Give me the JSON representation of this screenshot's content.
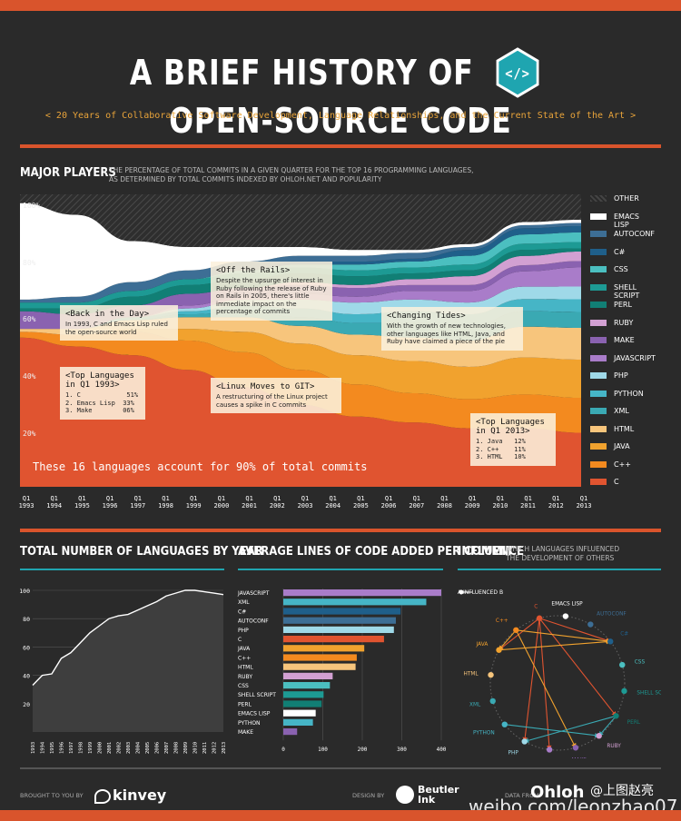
{
  "header": {
    "title_left": "A BRIEF HISTORY OF",
    "title_icon": "</>",
    "title_right": "OPEN-SOURCE CODE",
    "subtitle": "< 20 Years of Collaborative Software Development, Language Relationships, and the Current State of the Art >"
  },
  "major": {
    "title": "MAJOR PLAYERS",
    "desc_line1": "THE PERCENTAGE OF TOTAL COMMITS IN A GIVEN QUARTER FOR THE TOP 16 PROGRAMMING LANGUAGES,",
    "desc_line2": "AS DETERMINED BY TOTAL COMMITS INDEXED BY OHLOH.NET AND POPULARITY",
    "ylabels": [
      "100%",
      "80%",
      "60%",
      "40%",
      "20%"
    ],
    "xlabels": [
      "Q1 1993",
      "Q1 1994",
      "Q1 1995",
      "Q1 1996",
      "Q1 1997",
      "Q1 1998",
      "Q1 1999",
      "Q1 2000",
      "Q1 2001",
      "Q1 2002",
      "Q1 2003",
      "Q1 2004",
      "Q1 2005",
      "Q1 2006",
      "Q1 2007",
      "Q1 2008",
      "Q1 2009",
      "Q1 2010",
      "Q1 2011",
      "Q1 2012",
      "Q1 2013"
    ],
    "note": "These 16 languages account for 90% of total commits",
    "ann_day_head": "<Back in the Day>",
    "ann_day_body": "In 1993, C and Emacs Lisp ruled the open-source world",
    "ann_top93_head": "<Top Languages in Q1 1993>",
    "ann_top93_rows": [
      "1. C            51%",
      "2. Emacs Lisp  33%",
      "3. Make        06%"
    ],
    "ann_rails_head": "<Off the Rails>",
    "ann_rails_body": "Despite the upsurge of interest in Ruby following the release of Ruby on Rails in 2005, there's little immediate impact on the percentage of commits",
    "ann_linux_head": "<Linux Moves to GIT>",
    "ann_linux_body": "A restructuring of the Linux project causes a spike in C commits",
    "ann_tides_head": "<Changing Tides>",
    "ann_tides_body": "With the growth of new technologies, other languages like HTML, Java, and Ruby have claimed a piece of the pie",
    "ann_top13_head": "<Top Languages in Q1 2013>",
    "ann_top13_rows": [
      "1. Java   12%",
      "2. C++    11%",
      "3. HTML   10%"
    ],
    "legend": [
      {
        "name": "OTHER",
        "color": "#3a3a3a"
      },
      {
        "name": "EMACS LISP",
        "color": "#ffffff"
      },
      {
        "name": "AUTOCONF",
        "color": "#3d6e95"
      },
      {
        "name": "C#",
        "color": "#1f5f8a"
      },
      {
        "name": "CSS",
        "color": "#4bbfc0"
      },
      {
        "name": "SHELL SCRIPT",
        "color": "#1d9a94"
      },
      {
        "name": "PERL",
        "color": "#117f75"
      },
      {
        "name": "RUBY",
        "color": "#d2a0d2"
      },
      {
        "name": "MAKE",
        "color": "#8a62b0"
      },
      {
        "name": "JAVASCRIPT",
        "color": "#a97cc9"
      },
      {
        "name": "PHP",
        "color": "#9fd9e8"
      },
      {
        "name": "PYTHON",
        "color": "#46b5c6"
      },
      {
        "name": "XML",
        "color": "#3aa9b3"
      },
      {
        "name": "HTML",
        "color": "#f7c57c"
      },
      {
        "name": "JAVA",
        "color": "#f1a22e"
      },
      {
        "name": "C++",
        "color": "#f38a1f"
      },
      {
        "name": "C",
        "color": "#e05430"
      }
    ]
  },
  "total": {
    "title": "TOTAL NUMBER OF LANGUAGES BY YEAR",
    "ylabels": [
      "100",
      "80",
      "60",
      "40",
      "20"
    ],
    "years": [
      "1993",
      "1994",
      "1995",
      "1996",
      "1997",
      "1998",
      "1999",
      "2000",
      "2001",
      "2002",
      "2003",
      "2004",
      "2005",
      "2006",
      "2007",
      "2008",
      "2009",
      "2010",
      "2011",
      "2012",
      "2013"
    ]
  },
  "avg": {
    "title": "AVERAGE LINES OF CODE ADDED PER COMMIT",
    "xticks": [
      "0",
      "100",
      "200",
      "300",
      "400"
    ]
  },
  "influence": {
    "title": "INFLUENCE",
    "desc": "WHICH LANGUAGES INFLUENCED THE DEVELOPMENT OF OTHERS",
    "key": "A INFLUENCED B",
    "nodes": [
      "EMACS LISP",
      "AUTOCONF",
      "C#",
      "CSS",
      "SHELL SCRIPT",
      "PERL",
      "RUBY",
      "MAKE",
      "JAVASCRIPT",
      "PHP",
      "PYTHON",
      "XML",
      "HTML",
      "JAVA",
      "C++",
      "C"
    ]
  },
  "footer": {
    "brought": "BROUGHT TO YOU BY",
    "kinvey": "kinvey",
    "design": "DESIGN BY",
    "beutler": "Beutler Ink",
    "datafrom": "DATA FROM",
    "ohloh": "Ohloh",
    "wm_user": "@上图赵亮",
    "wm_url": "weibo.com/leonzhao07"
  },
  "chart_data": [
    {
      "type": "area",
      "title": "MAJOR PLAYERS",
      "xlabel": "",
      "ylabel": "",
      "ylim": [
        0,
        100
      ],
      "x": [
        "1993",
        "1995",
        "1997",
        "1999",
        "2001",
        "2003",
        "2005",
        "2007",
        "2009",
        "2011",
        "2013"
      ],
      "stacking": "percent",
      "series": [
        {
          "name": "C",
          "values": [
            51,
            48,
            45,
            40,
            34,
            28,
            24,
            22,
            20,
            19,
            17
          ]
        },
        {
          "name": "C++",
          "values": [
            2,
            4,
            8,
            10,
            12,
            12,
            11,
            10,
            10,
            11,
            11
          ]
        },
        {
          "name": "JAVA",
          "values": [
            0,
            0,
            1,
            4,
            7,
            9,
            10,
            11,
            11,
            12,
            12
          ]
        },
        {
          "name": "HTML",
          "values": [
            1,
            2,
            3,
            4,
            5,
            6,
            7,
            8,
            9,
            10,
            10
          ]
        },
        {
          "name": "XML",
          "values": [
            0,
            0,
            0,
            1,
            2,
            3,
            4,
            5,
            5,
            5,
            5
          ]
        },
        {
          "name": "PYTHON",
          "values": [
            0,
            0,
            1,
            1,
            2,
            3,
            3,
            4,
            4,
            4,
            4
          ]
        },
        {
          "name": "PHP",
          "values": [
            0,
            0,
            0,
            1,
            2,
            3,
            4,
            4,
            4,
            4,
            4
          ]
        },
        {
          "name": "JAVASCRIPT",
          "values": [
            0,
            0,
            0,
            1,
            1,
            2,
            2,
            3,
            4,
            5,
            6
          ]
        },
        {
          "name": "MAKE",
          "values": [
            6,
            5,
            4,
            4,
            3,
            3,
            3,
            2,
            2,
            2,
            2
          ]
        },
        {
          "name": "RUBY",
          "values": [
            0,
            0,
            0,
            0,
            0,
            1,
            1,
            2,
            3,
            3,
            3
          ]
        },
        {
          "name": "PERL",
          "values": [
            1,
            2,
            3,
            3,
            3,
            3,
            3,
            2,
            2,
            2,
            1
          ]
        },
        {
          "name": "SHELL SCRIPT",
          "values": [
            2,
            2,
            2,
            2,
            2,
            2,
            2,
            2,
            2,
            2,
            2
          ]
        },
        {
          "name": "CSS",
          "values": [
            0,
            0,
            0,
            0,
            1,
            1,
            2,
            2,
            3,
            3,
            3
          ]
        },
        {
          "name": "C#",
          "values": [
            0,
            0,
            0,
            0,
            0,
            1,
            1,
            1,
            2,
            2,
            2
          ]
        },
        {
          "name": "AUTOCONF",
          "values": [
            1,
            2,
            3,
            3,
            3,
            2,
            2,
            2,
            1,
            1,
            1
          ]
        },
        {
          "name": "EMACS LISP",
          "values": [
            33,
            28,
            14,
            8,
            5,
            3,
            2,
            1,
            1,
            1,
            1
          ]
        },
        {
          "name": "OTHER",
          "values": [
            3,
            7,
            16,
            18,
            18,
            18,
            19,
            19,
            17,
            9,
            8
          ]
        }
      ]
    },
    {
      "type": "area",
      "title": "TOTAL NUMBER OF LANGUAGES BY YEAR",
      "xlabel": "",
      "ylabel": "",
      "ylim": [
        0,
        100
      ],
      "x": [
        "1993",
        "1994",
        "1995",
        "1996",
        "1997",
        "1998",
        "1999",
        "2000",
        "2001",
        "2002",
        "2003",
        "2004",
        "2005",
        "2006",
        "2007",
        "2008",
        "2009",
        "2010",
        "2011",
        "2012",
        "2013"
      ],
      "values": [
        33,
        40,
        41,
        52,
        56,
        63,
        70,
        75,
        80,
        82,
        83,
        86,
        89,
        92,
        96,
        98,
        100,
        100,
        99,
        98,
        97
      ]
    },
    {
      "type": "bar",
      "orientation": "horizontal",
      "title": "AVERAGE LINES OF CODE ADDED PER COMMIT",
      "xlim": [
        0,
        400
      ],
      "categories": [
        "JAVASCRIPT",
        "XML",
        "C#",
        "AUTOCONF",
        "PHP",
        "C",
        "JAVA",
        "C++",
        "HTML",
        "RUBY",
        "CSS",
        "SHELL SCRIPT",
        "PERL",
        "EMACS LISP",
        "PYTHON",
        "MAKE"
      ],
      "values": [
        400,
        362,
        297,
        285,
        280,
        255,
        205,
        186,
        183,
        125,
        118,
        102,
        97,
        82,
        75,
        35
      ],
      "colors": [
        "#a97cc9",
        "#46b5c6",
        "#1f5f8a",
        "#3d6e95",
        "#9fd9e8",
        "#e05430",
        "#f1a22e",
        "#f38a1f",
        "#f7c57c",
        "#d2a0d2",
        "#4bbfc0",
        "#1d9a94",
        "#117f75",
        "#ffffff",
        "#46b5c6",
        "#8a62b0"
      ]
    }
  ]
}
